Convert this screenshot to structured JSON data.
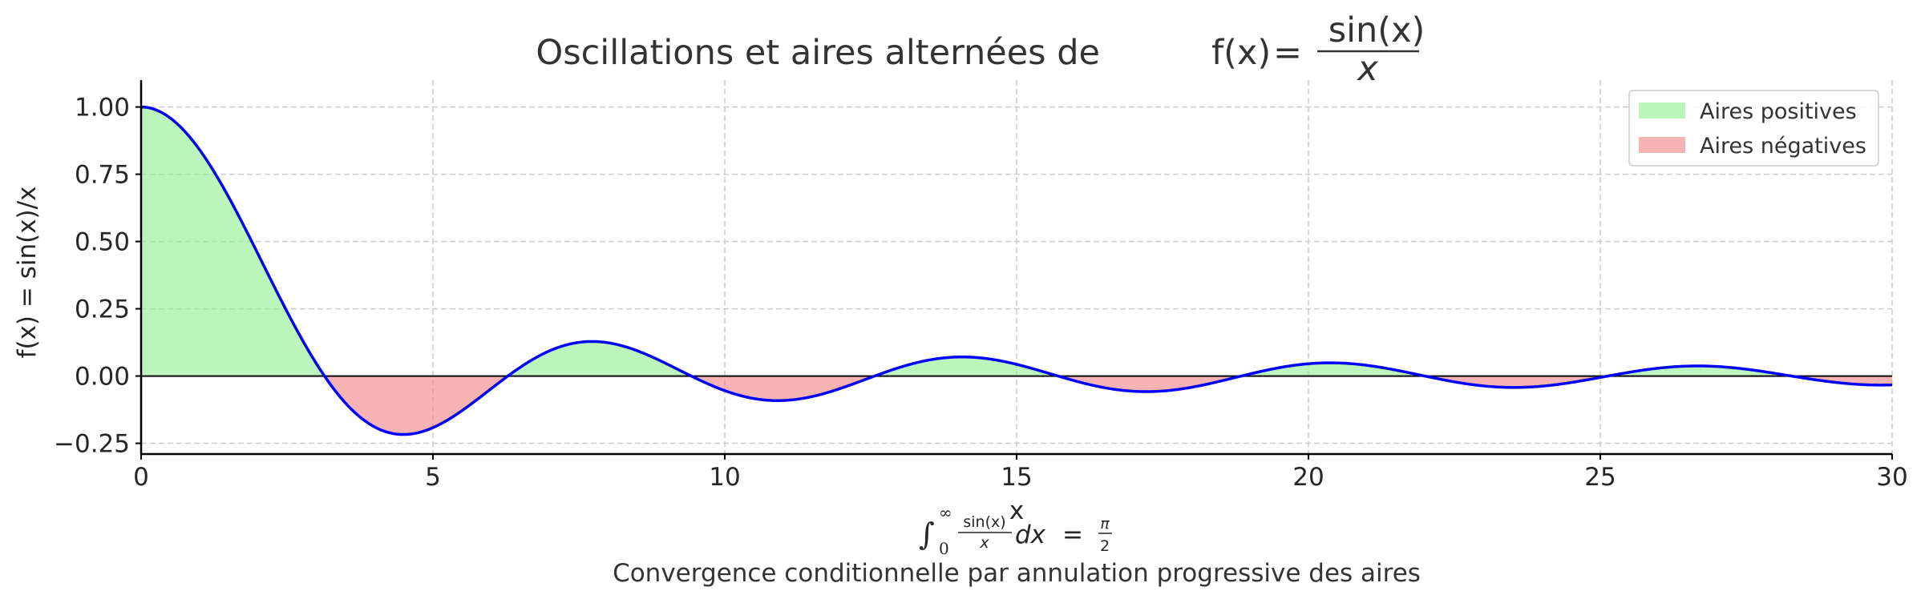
{
  "chart_data": {
    "type": "area",
    "title": "Oscillations et aires alternées de",
    "title_formula": {
      "lhs": "f(x)",
      "eq": "=",
      "numerator": "sin(x)",
      "denominator": "x"
    },
    "xlabel": "x",
    "ylabel": "f(x) = sin(x)/x",
    "caption": "Convergence conditionnelle par annulation progressive des aires",
    "integral": {
      "sign": "∫",
      "lower": "0",
      "upper": "∞",
      "numerator": "sin(x)",
      "denominator": "x",
      "dx": "dx",
      "eq": "=",
      "rhs_numerator": "π",
      "rhs_denominator": "2"
    },
    "function": "sin(x)/x",
    "xlim": [
      0,
      30
    ],
    "ylim": [
      -0.29,
      1.1
    ],
    "x_ticks": [
      0,
      5,
      10,
      15,
      20,
      25,
      30
    ],
    "x_tick_labels": [
      "0",
      "5",
      "10",
      "15",
      "20",
      "25",
      "30"
    ],
    "y_ticks": [
      -0.25,
      0,
      0.25,
      0.5,
      0.75,
      1.0
    ],
    "y_tick_labels": [
      "−0.25",
      "0.00",
      "0.25",
      "0.50",
      "0.75",
      "1.00"
    ],
    "grid": true,
    "legend_position": "top-right",
    "series": [
      {
        "name": "Aires positives",
        "color": "#90ee90",
        "alpha": 0.6
      },
      {
        "name": "Aires négatives",
        "color": "#f08080",
        "alpha": 0.6
      }
    ],
    "line_color": "#0000ff",
    "sample_points": [
      {
        "x": 0,
        "y": 1.0
      },
      {
        "x": 3.14,
        "y": 0.0
      },
      {
        "x": 4.49,
        "y": -0.217
      },
      {
        "x": 6.28,
        "y": 0.0
      },
      {
        "x": 7.73,
        "y": 0.128
      },
      {
        "x": 9.42,
        "y": 0.0
      },
      {
        "x": 10.9,
        "y": -0.091
      },
      {
        "x": 12.57,
        "y": 0.0
      },
      {
        "x": 14.07,
        "y": 0.071
      },
      {
        "x": 15.71,
        "y": 0.0
      },
      {
        "x": 17.22,
        "y": -0.058
      },
      {
        "x": 18.85,
        "y": 0.0
      },
      {
        "x": 20.37,
        "y": 0.049
      },
      {
        "x": 21.99,
        "y": 0.0
      },
      {
        "x": 23.52,
        "y": -0.042
      },
      {
        "x": 25.13,
        "y": 0.0
      },
      {
        "x": 26.67,
        "y": 0.037
      },
      {
        "x": 28.27,
        "y": 0.0
      },
      {
        "x": 30,
        "y": -0.033
      }
    ]
  }
}
